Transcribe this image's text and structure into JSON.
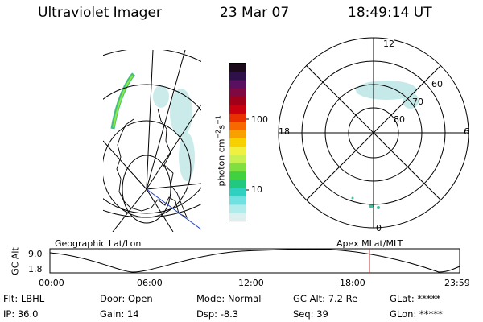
{
  "header": {
    "instrument": "Ultraviolet Imager",
    "date": "23 Mar 07",
    "time": "18:49:14 UT"
  },
  "colorbar": {
    "unit_label": "photon cm",
    "unit_exp1": "−2",
    "unit_mid": "s",
    "unit_exp2": "−1",
    "ticks": [
      "100",
      "10"
    ],
    "colors": [
      "#1a0a1a",
      "#30104a",
      "#5a1060",
      "#800840",
      "#a00018",
      "#c80010",
      "#e83000",
      "#f86800",
      "#f8a000",
      "#f8d000",
      "#f0f040",
      "#c8f050",
      "#80e040",
      "#40d040",
      "#20c880",
      "#30d0c0",
      "#70e0e0",
      "#b0ecec",
      "#dcf0f0"
    ]
  },
  "polar": {
    "labels": {
      "top": "12",
      "bottom": "0",
      "left": "18",
      "right": "6"
    },
    "ring_labels": [
      "60",
      "70",
      "80"
    ]
  },
  "timeline": {
    "axis_label": "GC Alt",
    "y_top": "9.0",
    "y_bottom": "1.8",
    "left_label": "Geographic Lat/Lon",
    "right_label": "Apex MLat/MLT",
    "ticks": [
      "00:00",
      "06:00",
      "12:00",
      "18:00",
      "23:59"
    ],
    "marker_color": "#c03030"
  },
  "status": {
    "row1": [
      {
        "key": "Flt:",
        "value": "LBHL"
      },
      {
        "key": "Door:",
        "value": "Open"
      },
      {
        "key": "Mode:",
        "value": "Normal"
      },
      {
        "key": "GC Alt:",
        "value": "7.2 Re"
      },
      {
        "key": "GLat:",
        "value": "*****"
      }
    ],
    "row2": [
      {
        "key": "IP:",
        "value": "36.0"
      },
      {
        "key": "Gain:",
        "value": "14"
      },
      {
        "key": "Dsp:",
        "value": "-8.3"
      },
      {
        "key": "Seq:",
        "value": "39"
      },
      {
        "key": "GLon:",
        "value": "*****"
      }
    ]
  }
}
